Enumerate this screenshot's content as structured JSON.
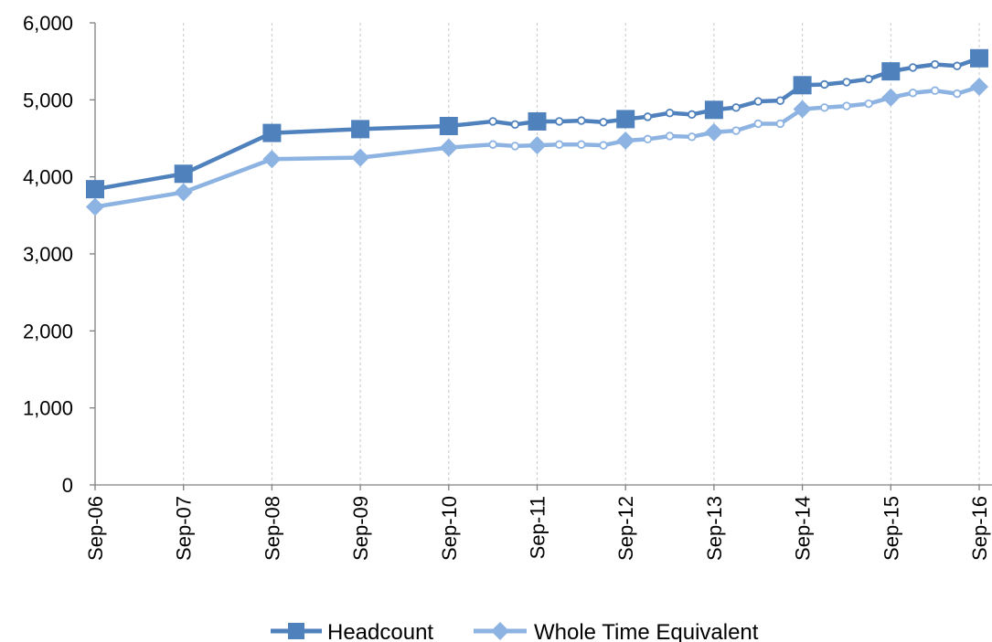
{
  "chart_data": {
    "type": "line",
    "title": "",
    "xlabel": "",
    "ylabel": "",
    "ylim": [
      0,
      6000
    ],
    "yticks": [
      "0",
      "1,000",
      "2,000",
      "3,000",
      "4,000",
      "5,000",
      "6,000"
    ],
    "ytick_values": [
      0,
      1000,
      2000,
      3000,
      4000,
      5000,
      6000
    ],
    "xticks": [
      "Sep-06",
      "Sep-07",
      "Sep-08",
      "Sep-09",
      "Sep-10",
      "Sep-11",
      "Sep-12",
      "Sep-13",
      "Sep-14",
      "Sep-15",
      "Sep-16"
    ],
    "grid": "vertical dashed",
    "legend_position": "bottom",
    "series": [
      {
        "name": "Headcount",
        "color": "#4f81bd",
        "marker": "square",
        "points": [
          [
            "Sep-06",
            3840,
            "major"
          ],
          [
            "Sep-07",
            4040,
            "major"
          ],
          [
            "Sep-08",
            4570,
            "major"
          ],
          [
            "Sep-09",
            4620,
            "major"
          ],
          [
            "Sep-10",
            4660,
            "major"
          ],
          [
            "Mar-11",
            4720,
            "minor"
          ],
          [
            "Jun-11",
            4680,
            "minor"
          ],
          [
            "Sep-11",
            4720,
            "major"
          ],
          [
            "Dec-11",
            4720,
            "minor"
          ],
          [
            "Mar-12",
            4730,
            "minor"
          ],
          [
            "Jun-12",
            4710,
            "minor"
          ],
          [
            "Sep-12",
            4750,
            "major"
          ],
          [
            "Dec-12",
            4780,
            "minor"
          ],
          [
            "Mar-13",
            4830,
            "minor"
          ],
          [
            "Jun-13",
            4810,
            "minor"
          ],
          [
            "Sep-13",
            4870,
            "major"
          ],
          [
            "Dec-13",
            4900,
            "minor"
          ],
          [
            "Mar-14",
            4980,
            "minor"
          ],
          [
            "Jun-14",
            4990,
            "minor"
          ],
          [
            "Sep-14",
            5190,
            "major"
          ],
          [
            "Dec-14",
            5200,
            "minor"
          ],
          [
            "Mar-15",
            5230,
            "minor"
          ],
          [
            "Jun-15",
            5270,
            "minor"
          ],
          [
            "Sep-15",
            5370,
            "major"
          ],
          [
            "Dec-15",
            5420,
            "minor"
          ],
          [
            "Mar-16",
            5460,
            "minor"
          ],
          [
            "Jun-16",
            5440,
            "minor"
          ],
          [
            "Sep-16",
            5540,
            "major"
          ]
        ]
      },
      {
        "name": "Whole Time Equivalent",
        "color": "#8db3e2",
        "marker": "diamond",
        "points": [
          [
            "Sep-06",
            3610,
            "major"
          ],
          [
            "Sep-07",
            3800,
            "major"
          ],
          [
            "Sep-08",
            4230,
            "major"
          ],
          [
            "Sep-09",
            4250,
            "major"
          ],
          [
            "Sep-10",
            4380,
            "major"
          ],
          [
            "Mar-11",
            4420,
            "minor"
          ],
          [
            "Jun-11",
            4400,
            "minor"
          ],
          [
            "Sep-11",
            4410,
            "major"
          ],
          [
            "Dec-11",
            4420,
            "minor"
          ],
          [
            "Mar-12",
            4420,
            "minor"
          ],
          [
            "Jun-12",
            4410,
            "minor"
          ],
          [
            "Sep-12",
            4470,
            "major"
          ],
          [
            "Dec-12",
            4490,
            "minor"
          ],
          [
            "Mar-13",
            4530,
            "minor"
          ],
          [
            "Jun-13",
            4520,
            "minor"
          ],
          [
            "Sep-13",
            4580,
            "major"
          ],
          [
            "Dec-13",
            4600,
            "minor"
          ],
          [
            "Mar-14",
            4690,
            "minor"
          ],
          [
            "Jun-14",
            4690,
            "minor"
          ],
          [
            "Sep-14",
            4880,
            "major"
          ],
          [
            "Dec-14",
            4900,
            "minor"
          ],
          [
            "Mar-15",
            4920,
            "minor"
          ],
          [
            "Jun-15",
            4950,
            "minor"
          ],
          [
            "Sep-15",
            5030,
            "major"
          ],
          [
            "Dec-15",
            5090,
            "minor"
          ],
          [
            "Mar-16",
            5120,
            "minor"
          ],
          [
            "Jun-16",
            5080,
            "minor"
          ],
          [
            "Sep-16",
            5170,
            "major"
          ]
        ]
      }
    ]
  }
}
